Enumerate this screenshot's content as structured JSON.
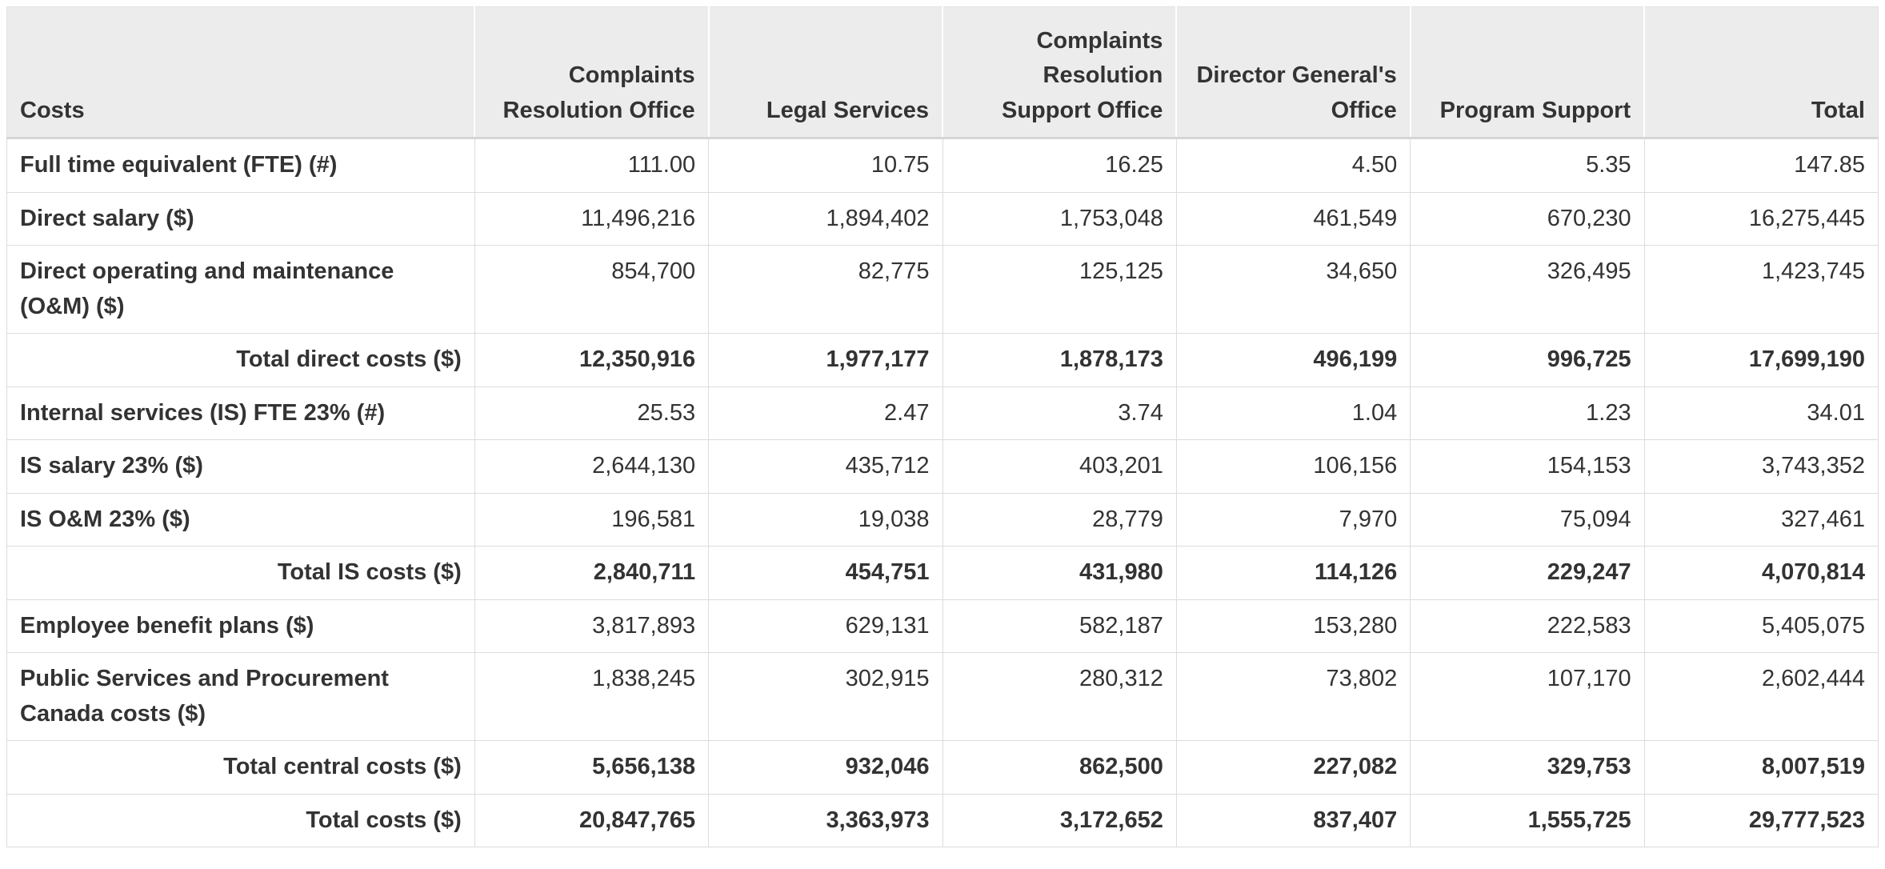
{
  "colors": {
    "header_background": "#ececec",
    "grid_border": "#dcdcdc",
    "text": "#333333",
    "cell_background": "#ffffff"
  },
  "table": {
    "columns": [
      {
        "label": "Costs"
      },
      {
        "label": "Complaints Resolution Office"
      },
      {
        "label": "Legal Services"
      },
      {
        "label": "Complaints Resolution Support Office"
      },
      {
        "label": "Director General's Office"
      },
      {
        "label": "Program Support"
      },
      {
        "label": "Total"
      }
    ],
    "rows": [
      {
        "label": "Full time equivalent (FTE) (#)",
        "type": "data",
        "values": [
          "111.00",
          "10.75",
          "16.25",
          "4.50",
          "5.35",
          "147.85"
        ]
      },
      {
        "label": "Direct salary ($)",
        "type": "data",
        "values": [
          "11,496,216",
          "1,894,402",
          "1,753,048",
          "461,549",
          "670,230",
          "16,275,445"
        ]
      },
      {
        "label": "Direct operating and maintenance (O&M) ($)",
        "type": "data",
        "values": [
          "854,700",
          "82,775",
          "125,125",
          "34,650",
          "326,495",
          "1,423,745"
        ]
      },
      {
        "label": "Total direct costs ($)",
        "type": "total",
        "values": [
          "12,350,916",
          "1,977,177",
          "1,878,173",
          "496,199",
          "996,725",
          "17,699,190"
        ]
      },
      {
        "label": "Internal services (IS) FTE 23% (#)",
        "type": "data",
        "values": [
          "25.53",
          "2.47",
          "3.74",
          "1.04",
          "1.23",
          "34.01"
        ]
      },
      {
        "label": "IS salary 23% ($)",
        "type": "data",
        "values": [
          "2,644,130",
          "435,712",
          "403,201",
          "106,156",
          "154,153",
          "3,743,352"
        ]
      },
      {
        "label": "IS O&M 23% ($)",
        "type": "data",
        "values": [
          "196,581",
          "19,038",
          "28,779",
          "7,970",
          "75,094",
          "327,461"
        ]
      },
      {
        "label": "Total IS costs ($)",
        "type": "total",
        "values": [
          "2,840,711",
          "454,751",
          "431,980",
          "114,126",
          "229,247",
          "4,070,814"
        ]
      },
      {
        "label": "Employee benefit plans ($)",
        "type": "data",
        "values": [
          "3,817,893",
          "629,131",
          "582,187",
          "153,280",
          "222,583",
          "5,405,075"
        ]
      },
      {
        "label": "Public Services and Procurement Canada costs ($)",
        "type": "data",
        "values": [
          "1,838,245",
          "302,915",
          "280,312",
          "73,802",
          "107,170",
          "2,602,444"
        ]
      },
      {
        "label": "Total central costs ($)",
        "type": "total",
        "values": [
          "5,656,138",
          "932,046",
          "862,500",
          "227,082",
          "329,753",
          "8,007,519"
        ]
      },
      {
        "label": "Total costs ($)",
        "type": "total",
        "values": [
          "20,847,765",
          "3,363,973",
          "3,172,652",
          "837,407",
          "1,555,725",
          "29,777,523"
        ]
      }
    ]
  }
}
